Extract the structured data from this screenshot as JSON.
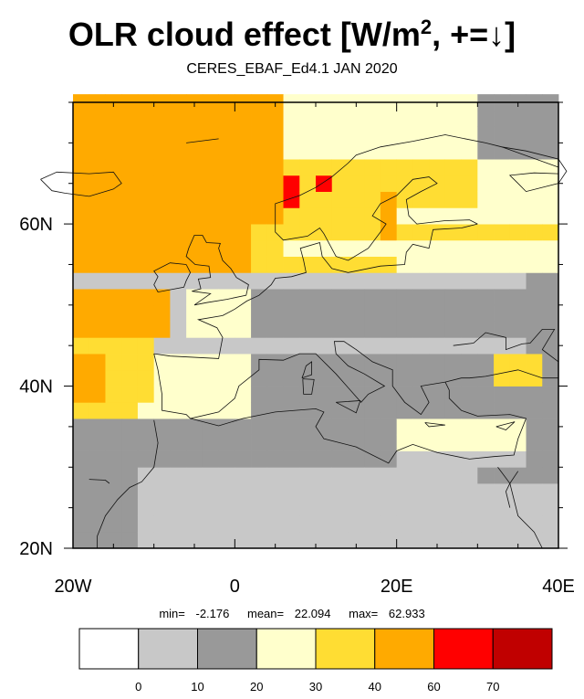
{
  "map": {
    "title_main": "OLR cloud effect [W/m",
    "title_sup": "2",
    "title_tail": ", +=↓]",
    "subtitle": "CERES_EBAF_Ed4.1 JAN 2020",
    "lon_range": [
      -20,
      40
    ],
    "lat_range": [
      20,
      75
    ],
    "x_ticks": [
      {
        "value": -20,
        "label": "20W"
      },
      {
        "value": 0,
        "label": "0"
      },
      {
        "value": 20,
        "label": "20E"
      },
      {
        "value": 40,
        "label": "40E"
      }
    ],
    "y_ticks": [
      {
        "value": 20,
        "label": "20N"
      },
      {
        "value": 40,
        "label": "40N"
      },
      {
        "value": 60,
        "label": "60N"
      }
    ]
  },
  "stats": {
    "min_label": "min=",
    "min_value": "-2.176",
    "mean_label": "mean=",
    "mean_value": "22.094",
    "max_label": "max=",
    "max_value": "62.933"
  },
  "colorbar": {
    "levels": [
      "0",
      "10",
      "20",
      "30",
      "40",
      "60",
      "70"
    ],
    "colors": [
      "#ffffff",
      "#c8c8c8",
      "#999999",
      "#ffffcc",
      "#ffdd33",
      "#ffaa00",
      "#ff0000",
      "#c00000"
    ]
  }
}
